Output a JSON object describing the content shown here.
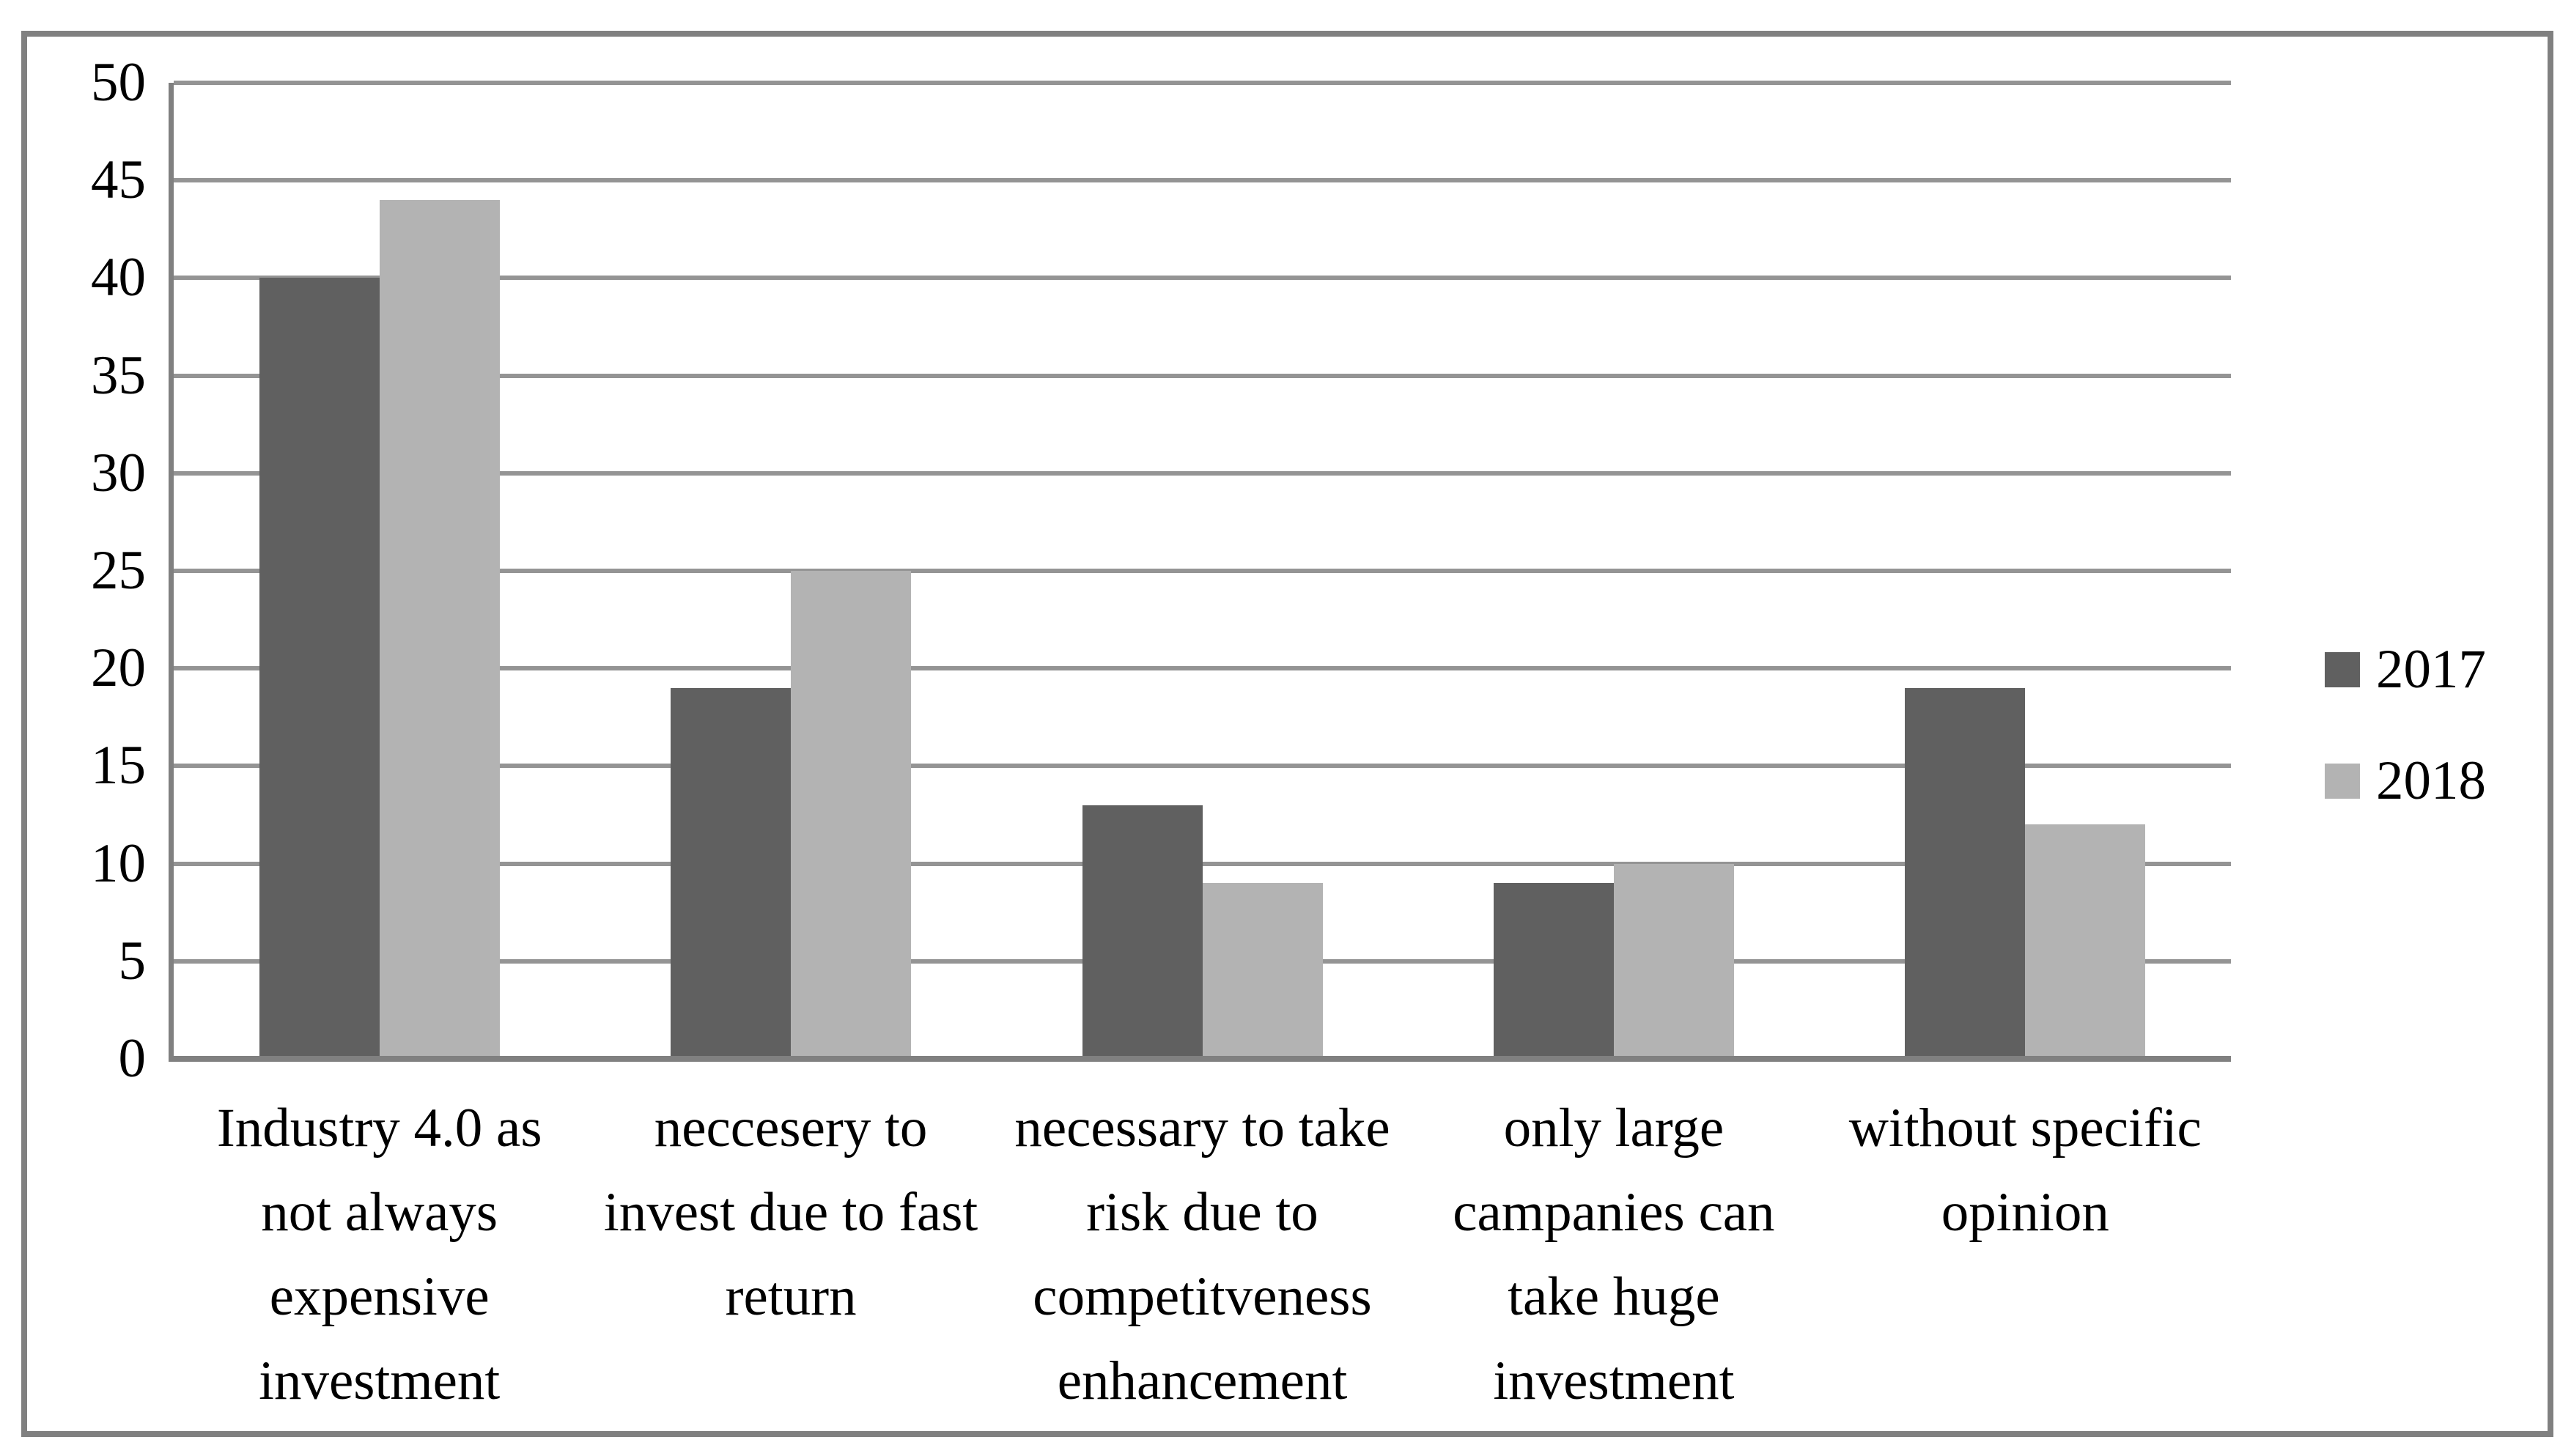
{
  "chart_data": {
    "type": "bar",
    "title": "",
    "xlabel": "",
    "ylabel": "",
    "categories": [
      "Industry 4.0 as not always expensive investment",
      "neccesery to invest due to fast return",
      "necessary to take risk due to competitveness enhancement",
      "only large campanies can take huge investment",
      "without specific opinion"
    ],
    "series": [
      {
        "name": "2017",
        "color": "#606060",
        "values": [
          40,
          19,
          13,
          9,
          19
        ]
      },
      {
        "name": "2018",
        "color": "#b3b3b3",
        "values": [
          44,
          25,
          9,
          10,
          12
        ]
      }
    ],
    "ylim": [
      0,
      50
    ],
    "ytick_step": 5,
    "grid": true,
    "legend_position": "right"
  },
  "colors": {
    "background": "#ffffff",
    "frame_border": "#808080",
    "gridline": "#949494",
    "axis": "#808080",
    "text": "#000000"
  }
}
